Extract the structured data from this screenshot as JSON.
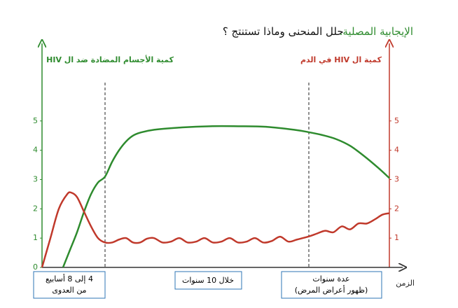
{
  "chart_data": {
    "type": "line",
    "title": "الإيجابية المصلية.",
    "subtitle": "حلل المنحنى وماذا تستنتج ؟",
    "ylabel": "كمية الأجسام المضادة ضد ال HIV",
    "y2label": "كمية ال HIV في الدم",
    "xlabel": "الزمن",
    "annotations": [
      "4 إلى 8 أسابيع",
      "من العدوى",
      "خلال 10 سنوات",
      "عدة سنوات",
      "(ظهور أعراض المرض)"
    ],
    "xlim": [
      0,
      248
    ],
    "ylim": [
      0,
      7.6
    ],
    "yticks": [
      0,
      1,
      2,
      3,
      4,
      5
    ],
    "y2lim": [
      0,
      7.6
    ],
    "y2ticks": [
      1,
      2,
      3,
      4,
      5
    ],
    "series": [
      {
        "name": "antibodies",
        "color": "#2e8b2e",
        "axis": "y",
        "x": [
          15,
          20,
          25,
          30,
          35,
          40,
          45,
          50,
          55,
          60,
          65,
          70,
          80,
          100,
          120,
          140,
          160,
          180,
          190,
          200,
          210,
          220,
          230,
          240,
          248
        ],
        "values": [
          0,
          0.6,
          1.2,
          1.9,
          2.5,
          2.9,
          3.1,
          3.6,
          4.0,
          4.3,
          4.5,
          4.6,
          4.7,
          4.78,
          4.82,
          4.82,
          4.8,
          4.7,
          4.62,
          4.52,
          4.38,
          4.15,
          3.8,
          3.4,
          3.05
        ]
      },
      {
        "name": "HIV",
        "color": "#c0392b",
        "axis": "y2",
        "x": [
          0,
          6,
          12,
          18,
          21,
          25,
          30,
          35,
          40,
          45,
          50,
          55,
          60,
          65,
          70,
          75,
          80,
          86,
          92,
          98,
          104,
          110,
          116,
          122,
          128,
          134,
          140,
          146,
          152,
          158,
          164,
          170,
          176,
          182,
          190,
          196,
          202,
          208,
          214,
          220,
          226,
          232,
          238,
          243,
          248
        ],
        "values": [
          0,
          1.0,
          2.0,
          2.5,
          2.55,
          2.4,
          1.9,
          1.4,
          1.0,
          0.85,
          0.85,
          0.95,
          1.0,
          0.85,
          0.85,
          0.98,
          1.0,
          0.85,
          0.88,
          1.0,
          0.85,
          0.88,
          1.0,
          0.85,
          0.88,
          1.0,
          0.85,
          0.88,
          1.0,
          0.85,
          0.9,
          1.05,
          0.88,
          0.95,
          1.05,
          1.15,
          1.25,
          1.2,
          1.4,
          1.3,
          1.5,
          1.5,
          1.65,
          1.8,
          1.85
        ]
      }
    ]
  }
}
